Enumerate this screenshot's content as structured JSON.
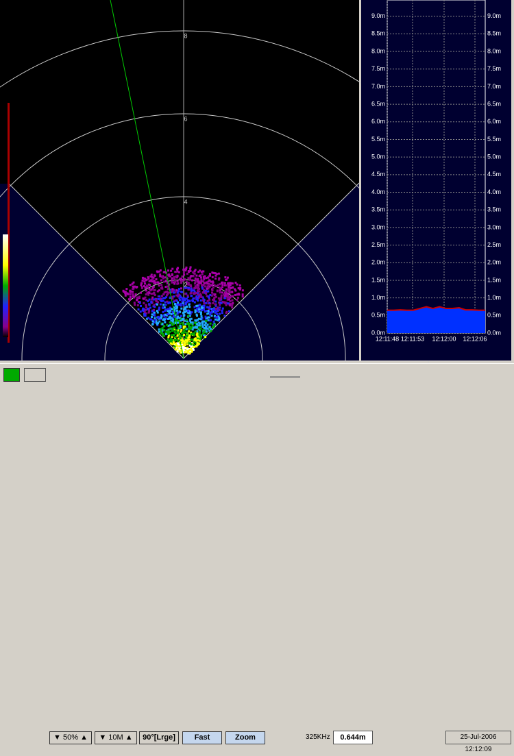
{
  "sonar": {
    "range_labels": [
      "2",
      "4",
      "6",
      "8"
    ]
  },
  "depth_plot": {
    "ylim": [
      0,
      9.5
    ],
    "yticks": [
      {
        "value": 0,
        "label": "0.0m"
      },
      {
        "value": 0.5,
        "label": "0.5m"
      },
      {
        "value": 1,
        "label": "1.0m"
      },
      {
        "value": 1.5,
        "label": "1.5m"
      },
      {
        "value": 2,
        "label": "2.0m"
      },
      {
        "value": 2.5,
        "label": "2.5m"
      },
      {
        "value": 3,
        "label": "3.0m"
      },
      {
        "value": 3.5,
        "label": "3.5m"
      },
      {
        "value": 4,
        "label": "4.0m"
      },
      {
        "value": 4.5,
        "label": "4.5m"
      },
      {
        "value": 5,
        "label": "5.0m"
      },
      {
        "value": 5.5,
        "label": "5.5m"
      },
      {
        "value": 6,
        "label": "6.0m"
      },
      {
        "value": 6.5,
        "label": "6.5m"
      },
      {
        "value": 7,
        "label": "7.0m"
      },
      {
        "value": 7.5,
        "label": "7.5m"
      },
      {
        "value": 8,
        "label": "8.0m"
      },
      {
        "value": 8.5,
        "label": "8.5m"
      },
      {
        "value": 9,
        "label": "9.0m"
      }
    ],
    "times": [
      "12:11:48",
      "12:11:53",
      "12:12:00",
      "12:12:06"
    ],
    "values": [
      0.65,
      0.65,
      0.66,
      0.65,
      0.65,
      0.7,
      0.75,
      0.7,
      0.75,
      0.7,
      0.7,
      0.72,
      0.66,
      0.66,
      0.65,
      0.65
    ]
  },
  "toolbar": {
    "gain": "50%",
    "range": "10M",
    "beam": "90°[Lrge]",
    "speed": "Fast",
    "view": "Zoom",
    "frequency": "325KHz",
    "depth": "0.644m",
    "datetime": "25-Jul-2006 12:12:09"
  }
}
